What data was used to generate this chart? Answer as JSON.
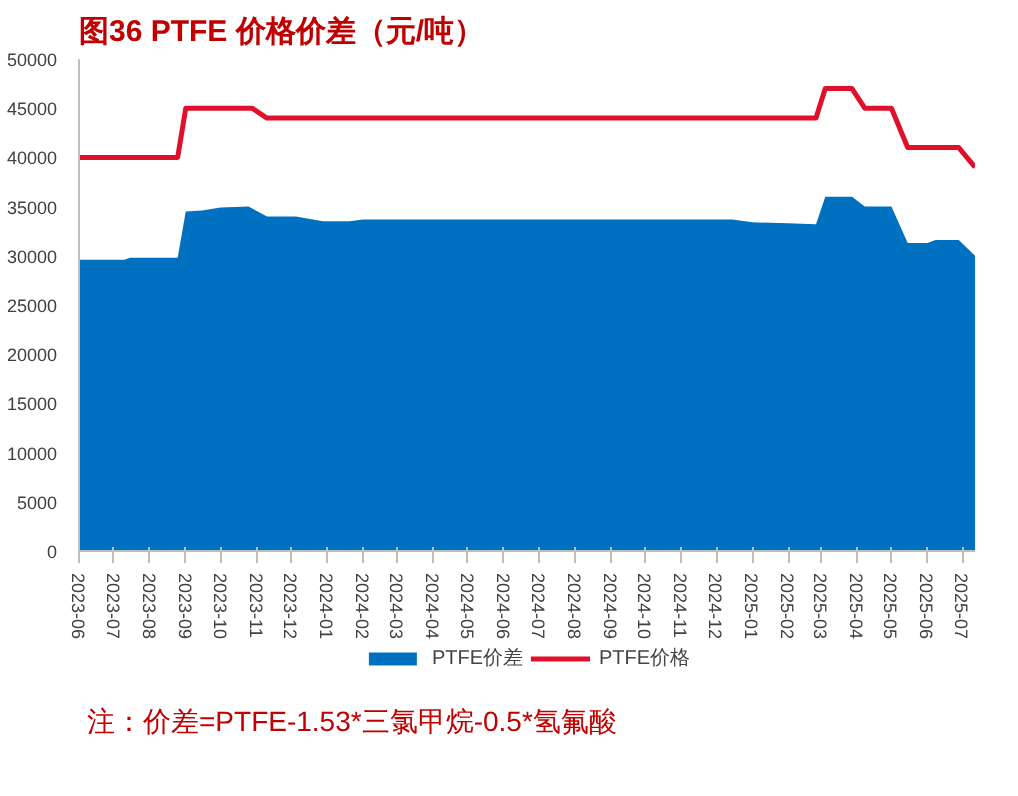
{
  "chart_data": {
    "type": "area",
    "title": "图36  PTFE 价格价差（元/吨）",
    "series": [
      {
        "name": "PTFE价差",
        "color": "#0070c0",
        "x": [
          "2023-06-01",
          "2023-07-10",
          "2023-07-15",
          "2023-08-25",
          "2023-09-01",
          "2023-09-15",
          "2023-10-01",
          "2023-10-25",
          "2023-11-10",
          "2023-12-05",
          "2023-12-28",
          "2024-01-20",
          "2024-02-01",
          "2024-12-15",
          "2025-01-01",
          "2025-02-01",
          "2025-02-25",
          "2025-03-05",
          "2025-03-28",
          "2025-04-08",
          "2025-05-01",
          "2025-05-15",
          "2025-06-01",
          "2025-06-08",
          "2025-06-28",
          "2025-07-12"
        ],
        "values": [
          29600,
          29600,
          29800,
          29800,
          34500,
          34600,
          34900,
          35000,
          34000,
          34000,
          33500,
          33500,
          33700,
          33700,
          33400,
          33300,
          33200,
          36000,
          36000,
          35000,
          35000,
          31300,
          31300,
          31600,
          31600,
          30000
        ]
      },
      {
        "name": "PTFE价格",
        "type": "line",
        "color": "#e0102a",
        "x": [
          "2023-06-01",
          "2023-08-25",
          "2023-09-01",
          "2023-10-28",
          "2023-11-10",
          "2025-02-25",
          "2025-03-05",
          "2025-03-28",
          "2025-04-08",
          "2025-05-01",
          "2025-05-15",
          "2025-06-28",
          "2025-07-12"
        ],
        "values": [
          40000,
          40000,
          45000,
          45000,
          44000,
          44000,
          47000,
          47000,
          45000,
          45000,
          41000,
          41000,
          39000
        ]
      }
    ],
    "xlim": [
      "2023-06-01",
      "2025-07-12"
    ],
    "xticks": [
      "2023-06",
      "2023-07",
      "2023-08",
      "2023-09",
      "2023-10",
      "2023-11",
      "2023-12",
      "2024-01",
      "2024-02",
      "2024-03",
      "2024-04",
      "2024-05",
      "2024-06",
      "2024-07",
      "2024-08",
      "2024-09",
      "2024-10",
      "2024-11",
      "2024-12",
      "2025-01",
      "2025-02",
      "2025-03",
      "2025-04",
      "2025-05",
      "2025-06",
      "2025-07"
    ],
    "ylim": [
      0,
      50000
    ],
    "yticks": [
      0,
      5000,
      10000,
      15000,
      20000,
      25000,
      30000,
      35000,
      40000,
      45000,
      50000
    ],
    "grid": false,
    "legend": "bottom",
    "annotations": [
      "注：价差=PTFE-1.53*三氯甲烷-0.5*氢氟酸"
    ]
  }
}
